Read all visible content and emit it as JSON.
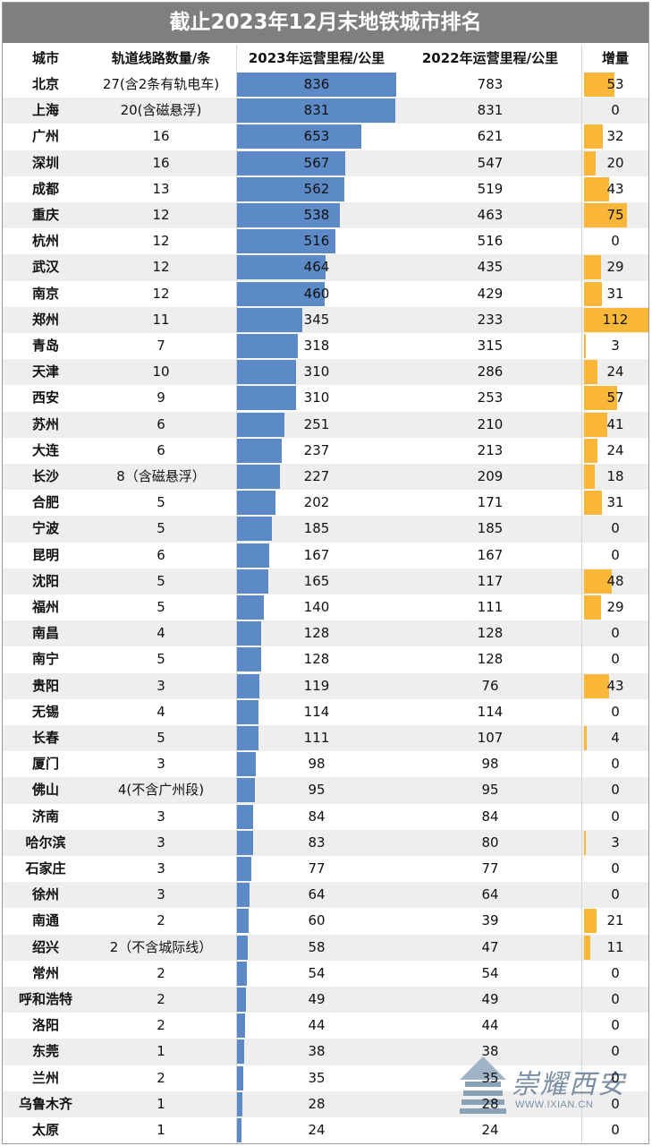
{
  "title": "截止2023年12月末地铁城市排名",
  "headers": {
    "city": "城市",
    "lines": "轨道线路数量/条",
    "m2023": "2023年运营里程/公里",
    "m2022": "2022年运营里程/公里",
    "increase": "增量"
  },
  "colors": {
    "bar2023": "#5b8ac6",
    "barIncrease": "#fbb838",
    "title_bg": "#7f7f7f",
    "stripe": "#eeeeee"
  },
  "watermark": {
    "brand": "崇耀西安",
    "url": "WWW.IXIAN.CN"
  },
  "chart_data": {
    "type": "table",
    "title": "截止2023年12月末地铁城市排名",
    "scale": {
      "m2023_max": 836,
      "increase_max": 112
    },
    "rows": [
      {
        "city": "北京",
        "lines": "27(含2条有轨电车)",
        "m2023": "836",
        "m2022": "783",
        "inc": "53"
      },
      {
        "city": "上海",
        "lines": "20(含磁悬浮)",
        "m2023": "831",
        "m2022": "831",
        "inc": "0"
      },
      {
        "city": "广州",
        "lines": "16",
        "m2023": "653",
        "m2022": "621",
        "inc": "32"
      },
      {
        "city": "深圳",
        "lines": "16",
        "m2023": "567",
        "m2022": "547",
        "inc": "20"
      },
      {
        "city": "成都",
        "lines": "13",
        "m2023": "562",
        "m2022": "519",
        "inc": "43"
      },
      {
        "city": "重庆",
        "lines": "12",
        "m2023": "538",
        "m2022": "463",
        "inc": "75"
      },
      {
        "city": "杭州",
        "lines": "12",
        "m2023": "516",
        "m2022": "516",
        "inc": "0"
      },
      {
        "city": "武汉",
        "lines": "12",
        "m2023": "464",
        "m2022": "435",
        "inc": "29"
      },
      {
        "city": "南京",
        "lines": "12",
        "m2023": "460",
        "m2022": "429",
        "inc": "31"
      },
      {
        "city": "郑州",
        "lines": "11",
        "m2023": "345",
        "m2022": "233",
        "inc": "112"
      },
      {
        "city": "青岛",
        "lines": "7",
        "m2023": "318",
        "m2022": "315",
        "inc": "3"
      },
      {
        "city": "天津",
        "lines": "10",
        "m2023": "310",
        "m2022": "286",
        "inc": "24"
      },
      {
        "city": "西安",
        "lines": "9",
        "m2023": "310",
        "m2022": "253",
        "inc": "57"
      },
      {
        "city": "苏州",
        "lines": "6",
        "m2023": "251",
        "m2022": "210",
        "inc": "41"
      },
      {
        "city": "大连",
        "lines": "6",
        "m2023": "237",
        "m2022": "213",
        "inc": "24"
      },
      {
        "city": "长沙",
        "lines": "8（含磁悬浮）",
        "m2023": "227",
        "m2022": "209",
        "inc": "18"
      },
      {
        "city": "合肥",
        "lines": "5",
        "m2023": "202",
        "m2022": "171",
        "inc": "31"
      },
      {
        "city": "宁波",
        "lines": "5",
        "m2023": "185",
        "m2022": "185",
        "inc": "0"
      },
      {
        "city": "昆明",
        "lines": "6",
        "m2023": "167",
        "m2022": "167",
        "inc": "0"
      },
      {
        "city": "沈阳",
        "lines": "5",
        "m2023": "165",
        "m2022": "117",
        "inc": "48"
      },
      {
        "city": "福州",
        "lines": "5",
        "m2023": "140",
        "m2022": "111",
        "inc": "29"
      },
      {
        "city": "南昌",
        "lines": "4",
        "m2023": "128",
        "m2022": "128",
        "inc": "0"
      },
      {
        "city": "南宁",
        "lines": "5",
        "m2023": "128",
        "m2022": "128",
        "inc": "0"
      },
      {
        "city": "贵阳",
        "lines": "3",
        "m2023": "119",
        "m2022": "76",
        "inc": "43"
      },
      {
        "city": "无锡",
        "lines": "4",
        "m2023": "114",
        "m2022": "114",
        "inc": "0"
      },
      {
        "city": "长春",
        "lines": "5",
        "m2023": "111",
        "m2022": "107",
        "inc": "4"
      },
      {
        "city": "厦门",
        "lines": "3",
        "m2023": "98",
        "m2022": "98",
        "inc": "0"
      },
      {
        "city": "佛山",
        "lines": "4(不含广州段)",
        "m2023": "95",
        "m2022": "95",
        "inc": "0"
      },
      {
        "city": "济南",
        "lines": "3",
        "m2023": "84",
        "m2022": "84",
        "inc": "0"
      },
      {
        "city": "哈尔滨",
        "lines": "3",
        "m2023": "83",
        "m2022": "80",
        "inc": "3"
      },
      {
        "city": "石家庄",
        "lines": "3",
        "m2023": "77",
        "m2022": "77",
        "inc": "0"
      },
      {
        "city": "徐州",
        "lines": "3",
        "m2023": "64",
        "m2022": "64",
        "inc": "0"
      },
      {
        "city": "南通",
        "lines": "2",
        "m2023": "60",
        "m2022": "39",
        "inc": "21"
      },
      {
        "city": "绍兴",
        "lines": "2（不含城际线）",
        "m2023": "58",
        "m2022": "47",
        "inc": "11"
      },
      {
        "city": "常州",
        "lines": "2",
        "m2023": "54",
        "m2022": "54",
        "inc": "0"
      },
      {
        "city": "呼和浩特",
        "lines": "2",
        "m2023": "49",
        "m2022": "49",
        "inc": "0"
      },
      {
        "city": "洛阳",
        "lines": "2",
        "m2023": "44",
        "m2022": "44",
        "inc": "0"
      },
      {
        "city": "东莞",
        "lines": "1",
        "m2023": "38",
        "m2022": "38",
        "inc": "0"
      },
      {
        "city": "兰州",
        "lines": "2",
        "m2023": "35",
        "m2022": "35",
        "inc": "0"
      },
      {
        "city": "乌鲁木齐",
        "lines": "1",
        "m2023": "28",
        "m2022": "28",
        "inc": "0"
      },
      {
        "city": "太原",
        "lines": "1",
        "m2023": "24",
        "m2022": "24",
        "inc": "0"
      }
    ]
  }
}
